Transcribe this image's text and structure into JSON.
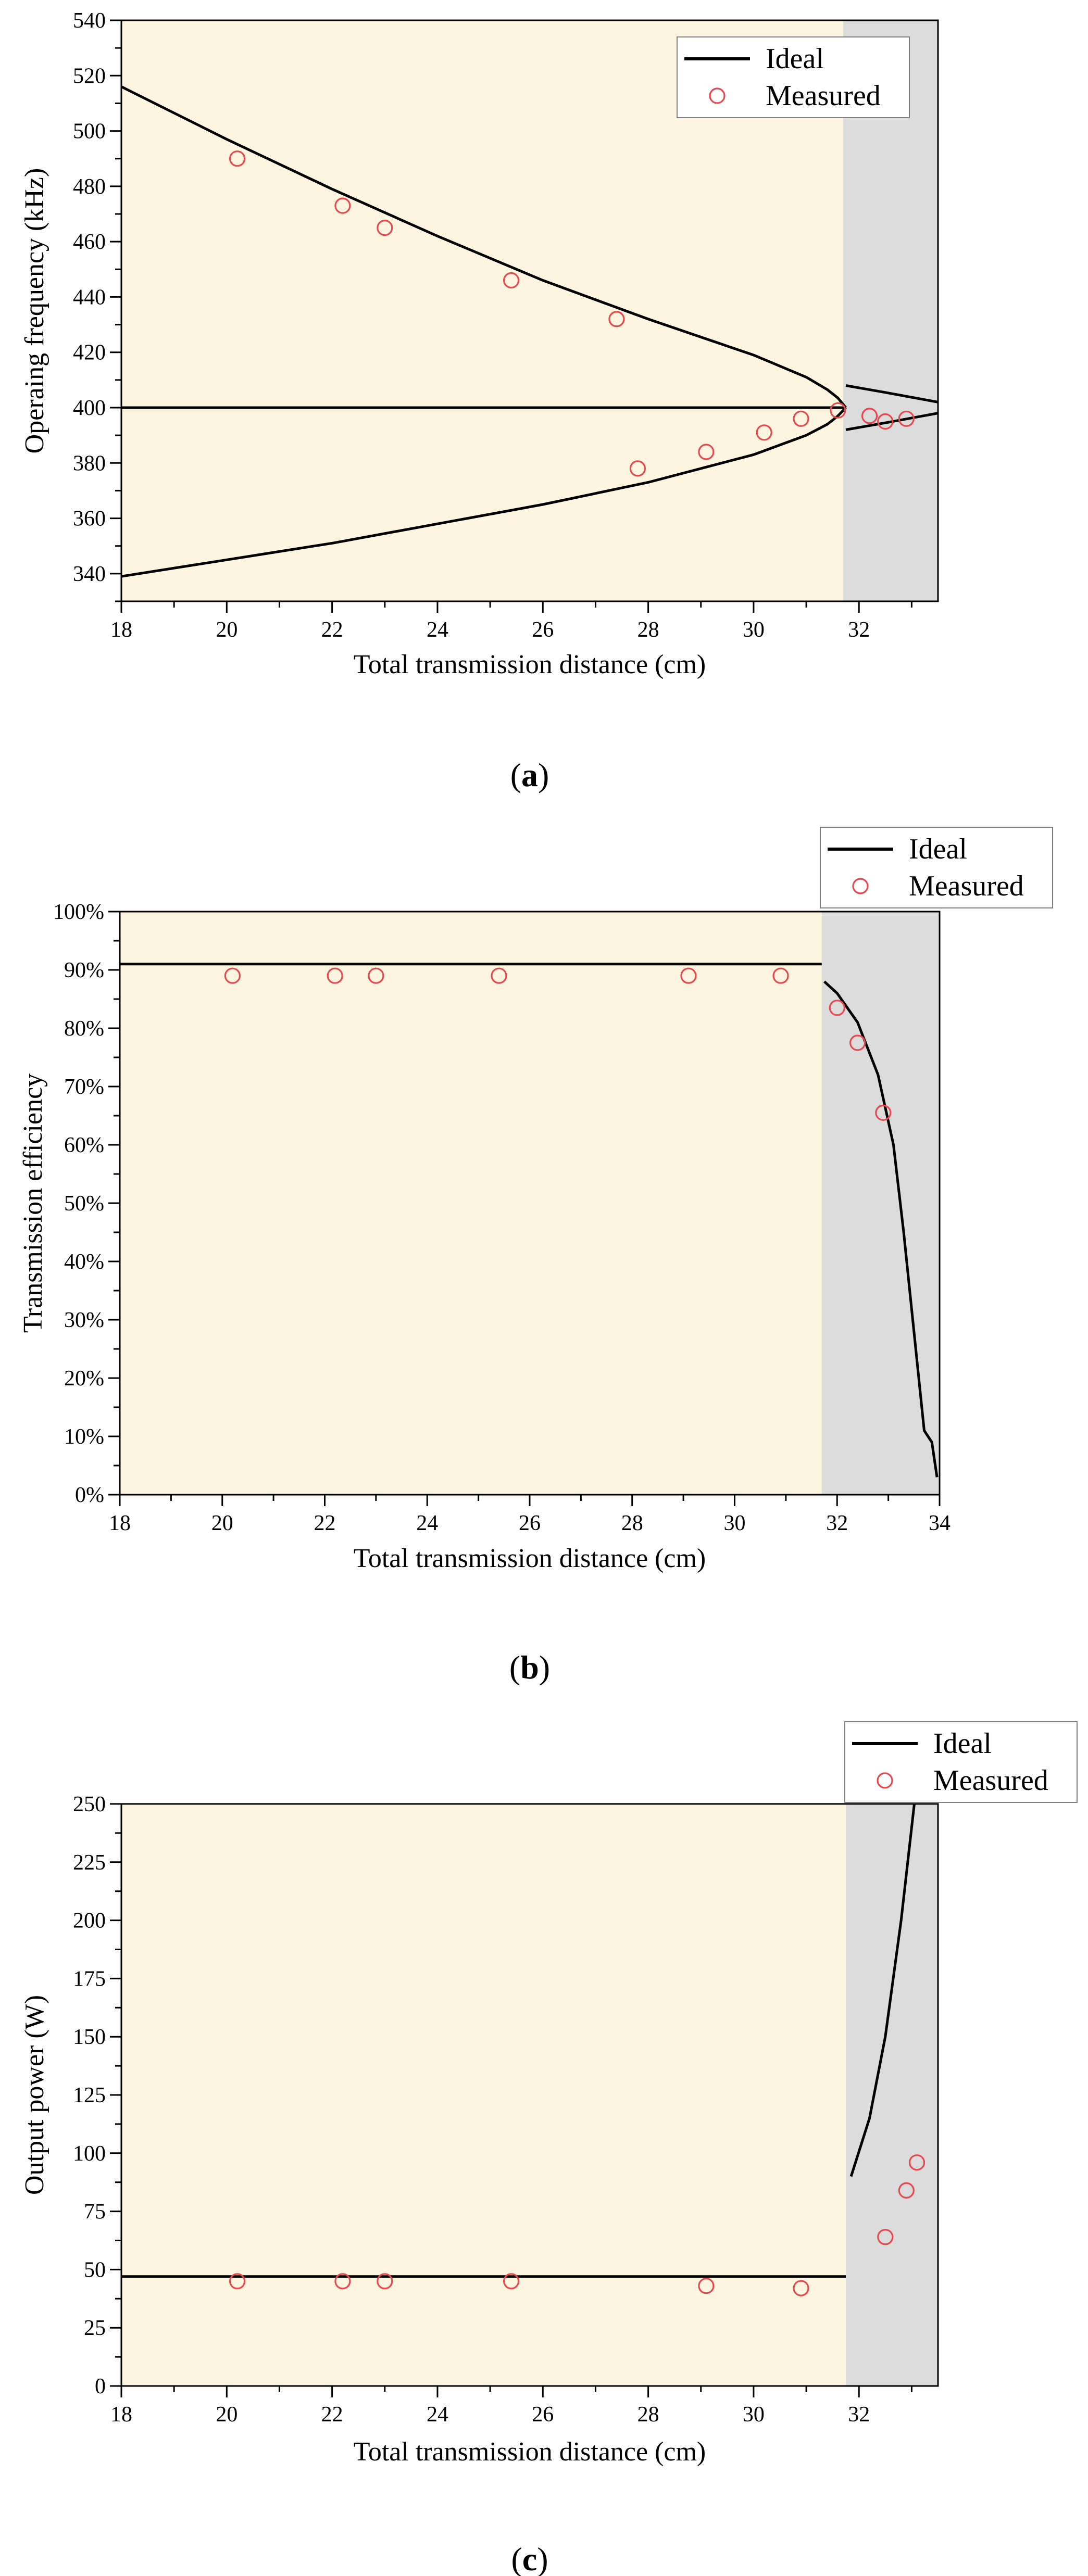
{
  "colors": {
    "plot_background": "#fdf5e0",
    "shaded_region": "#dcdcdc",
    "ideal_line": "#000000",
    "measured_marker": "#e8484f",
    "legend_background": "#ffffff"
  },
  "chart_data": [
    {
      "id": "a",
      "type": "line",
      "panel_label": "a",
      "xlabel": "Total transmission distance (cm)",
      "ylabel": "Operaing frequency (kHz)",
      "xlim": [
        18,
        33.5
      ],
      "ylim": [
        330,
        540
      ],
      "xticks": [
        18,
        20,
        22,
        24,
        26,
        28,
        30,
        32
      ],
      "yticks": [
        340,
        360,
        380,
        400,
        420,
        440,
        460,
        480,
        500,
        520,
        540
      ],
      "ytick_suffix": "",
      "shaded_from_x": 31.7,
      "legend": {
        "placement": "top-right",
        "ideal_label": "Ideal",
        "measured_label": "Measured"
      },
      "series": [
        {
          "name": "Ideal",
          "kind": "line",
          "points": [
            [
              18,
              516
            ],
            [
              20,
              497
            ],
            [
              22,
              479
            ],
            [
              24,
              462
            ],
            [
              26,
              446
            ],
            [
              28,
              432
            ],
            [
              30,
              419
            ],
            [
              31,
              411
            ],
            [
              31.4,
              406.5
            ],
            [
              31.6,
              403.5
            ],
            [
              31.75,
              400
            ]
          ]
        },
        {
          "name": "Ideal",
          "kind": "line",
          "points": [
            [
              18,
              339
            ],
            [
              20,
              345
            ],
            [
              22,
              351
            ],
            [
              24,
              358
            ],
            [
              26,
              365
            ],
            [
              28,
              373
            ],
            [
              30,
              383
            ],
            [
              31,
              390
            ],
            [
              31.4,
              394
            ],
            [
              31.6,
              397
            ],
            [
              31.75,
              400
            ]
          ]
        },
        {
          "name": "Ideal",
          "kind": "line",
          "points": [
            [
              18,
              400
            ],
            [
              31.75,
              400
            ]
          ]
        },
        {
          "name": "Ideal",
          "kind": "line",
          "points": [
            [
              31.75,
              408
            ],
            [
              32.5,
              405.5
            ],
            [
              33.5,
              402
            ]
          ]
        },
        {
          "name": "Ideal",
          "kind": "line",
          "points": [
            [
              31.75,
              392
            ],
            [
              32.5,
              394.5
            ],
            [
              33.5,
              398
            ]
          ]
        },
        {
          "name": "Measured",
          "kind": "scatter",
          "points": [
            [
              20.2,
              490
            ],
            [
              22.2,
              473
            ],
            [
              23.0,
              465
            ],
            [
              25.4,
              446
            ],
            [
              27.4,
              432
            ],
            [
              27.8,
              378
            ],
            [
              29.1,
              384
            ],
            [
              30.2,
              391
            ],
            [
              30.9,
              396
            ],
            [
              31.6,
              399
            ],
            [
              32.2,
              397
            ],
            [
              32.5,
              395
            ],
            [
              32.9,
              396
            ]
          ]
        }
      ]
    },
    {
      "id": "b",
      "type": "line",
      "panel_label": "b",
      "xlabel": "Total transmission distance (cm)",
      "ylabel": "Transmission efficiency",
      "xlim": [
        18,
        34
      ],
      "ylim": [
        0,
        100
      ],
      "xticks": [
        18,
        20,
        22,
        24,
        26,
        28,
        30,
        32,
        34
      ],
      "yticks": [
        0,
        10,
        20,
        30,
        40,
        50,
        60,
        70,
        80,
        90,
        100
      ],
      "ytick_suffix": "%",
      "shaded_from_x": 31.7,
      "legend": {
        "placement": "above-right",
        "ideal_label": "Ideal",
        "measured_label": "Measured"
      },
      "series": [
        {
          "name": "Ideal",
          "kind": "line",
          "points": [
            [
              18,
              91
            ],
            [
              31.7,
              91
            ]
          ]
        },
        {
          "name": "Ideal",
          "kind": "line",
          "points": [
            [
              31.75,
              88
            ],
            [
              32,
              86
            ],
            [
              32.4,
              81
            ],
            [
              32.8,
              72
            ],
            [
              33.1,
              60
            ],
            [
              33.3,
              45
            ],
            [
              33.5,
              28
            ],
            [
              33.7,
              11
            ],
            [
              33.85,
              9
            ],
            [
              33.95,
              3
            ]
          ]
        },
        {
          "name": "Measured",
          "kind": "scatter",
          "points": [
            [
              20.2,
              89
            ],
            [
              22.2,
              89
            ],
            [
              23.0,
              89
            ],
            [
              25.4,
              89
            ],
            [
              29.1,
              89
            ],
            [
              30.9,
              89
            ],
            [
              32.0,
              83.5
            ],
            [
              32.4,
              77.5
            ],
            [
              32.9,
              65.5
            ]
          ]
        }
      ]
    },
    {
      "id": "c",
      "type": "line",
      "panel_label": "c",
      "xlabel": "Total transmission distance (cm)",
      "ylabel": "Output power (W)",
      "xlim": [
        18,
        33.5
      ],
      "ylim": [
        0,
        250
      ],
      "xticks": [
        18,
        20,
        22,
        24,
        26,
        28,
        30,
        32
      ],
      "yticks": [
        0,
        25,
        50,
        75,
        100,
        125,
        150,
        175,
        200,
        225,
        250
      ],
      "ytick_suffix": "",
      "shaded_from_x": 31.75,
      "legend": {
        "placement": "above-right",
        "ideal_label": "Ideal",
        "measured_label": "Measured"
      },
      "series": [
        {
          "name": "Ideal",
          "kind": "line",
          "points": [
            [
              18,
              47
            ],
            [
              31.75,
              47
            ]
          ]
        },
        {
          "name": "Ideal",
          "kind": "line",
          "points": [
            [
              31.85,
              90
            ],
            [
              32.2,
              115
            ],
            [
              32.5,
              150
            ],
            [
              32.8,
              200
            ],
            [
              33.05,
              250
            ]
          ]
        },
        {
          "name": "Measured",
          "kind": "scatter",
          "points": [
            [
              20.2,
              45
            ],
            [
              22.2,
              45
            ],
            [
              23.0,
              45
            ],
            [
              25.4,
              45
            ],
            [
              29.1,
              43
            ],
            [
              30.9,
              42
            ],
            [
              32.5,
              64
            ],
            [
              32.9,
              84
            ],
            [
              33.1,
              96
            ]
          ]
        }
      ]
    }
  ]
}
